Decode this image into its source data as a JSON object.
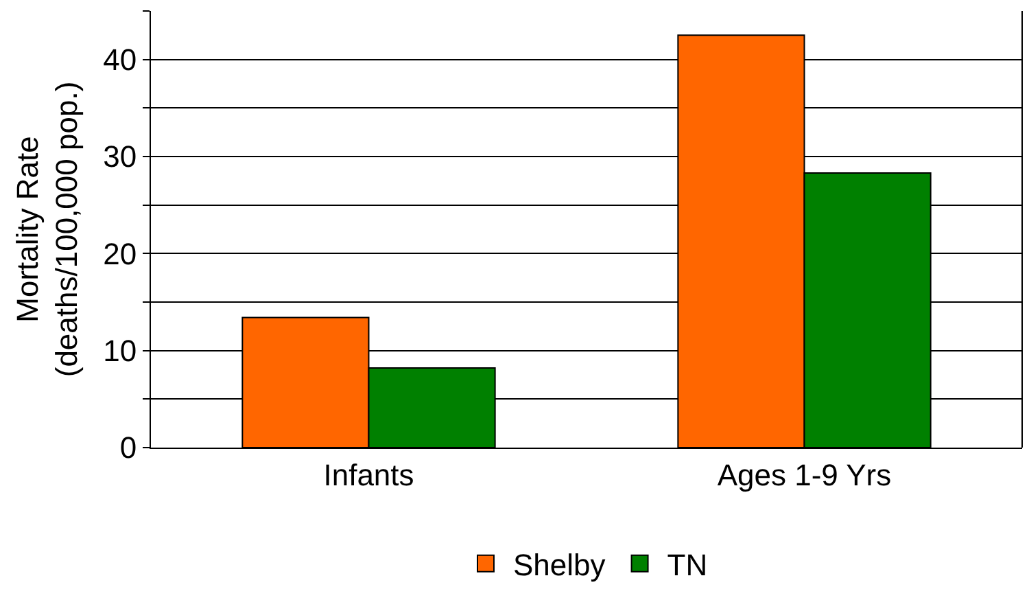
{
  "chart_data": {
    "type": "bar",
    "ylabel": "Mortality Rate\n(deaths/100,000 pop.)",
    "categories": [
      "Infants",
      "Ages 1-9 Yrs"
    ],
    "series": [
      {
        "name": "Shelby",
        "color": "#ff6600",
        "values": [
          13.4,
          42.5
        ]
      },
      {
        "name": "TN",
        "color": "#008000",
        "values": [
          8.2,
          28.3
        ]
      }
    ],
    "ylim": [
      0,
      45
    ],
    "yticks": [
      0,
      {
        "value": 5,
        "label": null
      },
      10,
      {
        "value": 15,
        "label": null
      },
      20,
      {
        "value": 25,
        "label": null
      },
      30,
      {
        "value": 35,
        "label": null
      },
      40,
      {
        "value": 45,
        "label": null
      }
    ],
    "grid": "y",
    "legend": "bottom"
  }
}
